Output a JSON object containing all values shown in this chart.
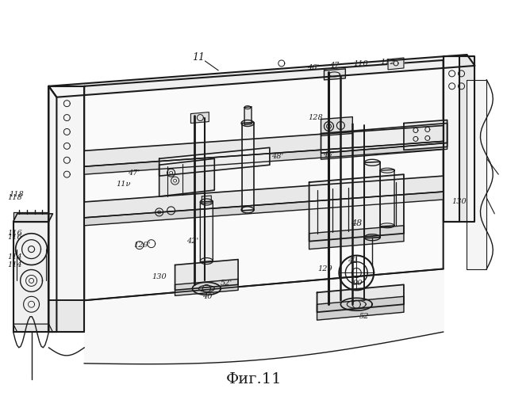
{
  "title": "Фиг.11",
  "title_font": 14,
  "bg_color": "#ffffff",
  "line_color": "#1a1a1a",
  "fig_width": 6.39,
  "fig_height": 5.0,
  "dpi": 100
}
